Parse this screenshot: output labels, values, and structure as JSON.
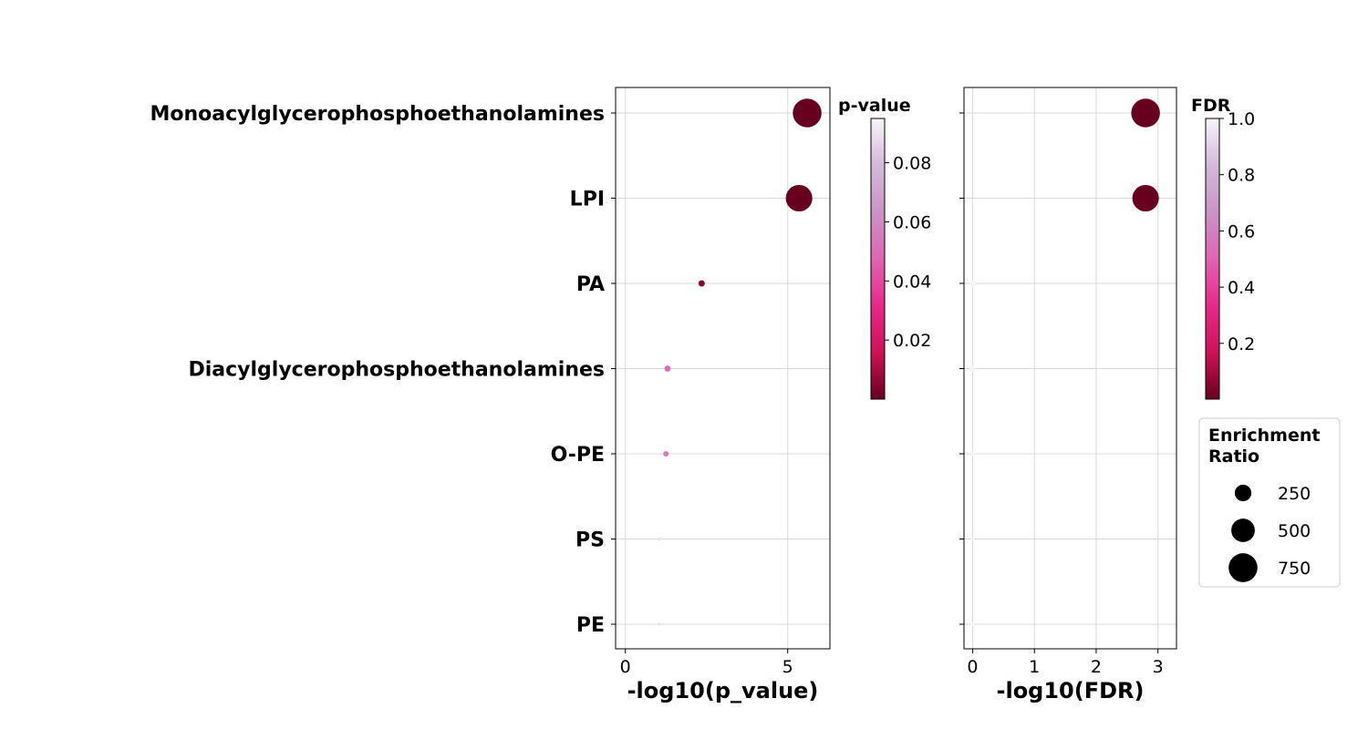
{
  "chart_data": {
    "type": "scatter",
    "categories": [
      "Monoacylglycerophosphoethanolamines",
      "LPI",
      "PA",
      "Diacylglycerophosphoethanolamines",
      "O-PE",
      "PS",
      "PE"
    ],
    "panels": [
      {
        "xlabel": "-log10(p_value)",
        "x": [
          5.6,
          5.35,
          2.35,
          1.3,
          1.25,
          1.05,
          1.05
        ],
        "color_value": [
          2.5e-06,
          4.5e-06,
          0.0045,
          0.05,
          0.056,
          0.09,
          0.09
        ],
        "size": [
          820,
          700,
          40,
          38,
          30,
          10,
          10
        ],
        "xlim": [
          -0.3,
          6.3
        ],
        "xticks": [
          "0",
          "5"
        ],
        "xtick_values": [
          0,
          5
        ],
        "colorbar": {
          "title": "p-value",
          "range": [
            2.5e-06,
            0.095
          ],
          "ticks": [
            "0.02",
            "0.04",
            "0.06",
            "0.08"
          ],
          "tick_values": [
            0.02,
            0.04,
            0.06,
            0.08
          ]
        }
      },
      {
        "xlabel": "-log10(FDR)",
        "x": [
          2.8,
          2.8,
          0.0,
          0.0,
          0.0,
          0.0,
          0.0
        ],
        "color_value": [
          0.0016,
          0.0016,
          1.0,
          1.0,
          1.0,
          1.0,
          1.0
        ],
        "size": [
          820,
          700,
          40,
          38,
          30,
          10,
          10
        ],
        "xlim": [
          -0.14,
          3.3
        ],
        "xticks": [
          "0",
          "1",
          "2",
          "3"
        ],
        "xtick_values": [
          0,
          1,
          2,
          3
        ],
        "colorbar": {
          "title": "FDR",
          "range": [
            0.0016,
            1.0
          ],
          "ticks": [
            "0.2",
            "0.4",
            "0.6",
            "0.8",
            "1.0"
          ],
          "tick_values": [
            0.2,
            0.4,
            0.6,
            0.8,
            1.0
          ]
        }
      }
    ],
    "legend": {
      "title_line1": "Enrichment",
      "title_line2": "Ratio",
      "entries": [
        "250",
        "500",
        "750"
      ],
      "entry_values": [
        250,
        500,
        750
      ],
      "placement": "right"
    },
    "colormap": [
      "#67001f",
      "#ce1256",
      "#e7298a",
      "#df65b0",
      "#c994c7",
      "#d4b9da",
      "#f7f4f9"
    ],
    "grid": true
  }
}
